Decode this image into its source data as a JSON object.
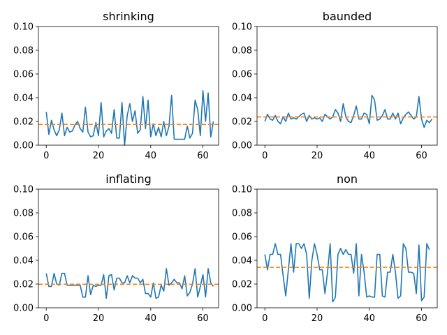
{
  "colors": {
    "series": "#1f77b4",
    "reference": "#ff7f0e"
  },
  "chart_data": [
    {
      "type": "line",
      "title": "shrinking",
      "xlim": [
        -3,
        66
      ],
      "ylim": [
        0,
        0.1
      ],
      "xticks": [
        "0",
        "20",
        "40",
        "60"
      ],
      "yticks": [
        "0.00",
        "0.02",
        "0.04",
        "0.06",
        "0.08",
        "0.10"
      ],
      "reference_line": 0.0175,
      "series": [
        {
          "values": [
            0.028,
            0.009,
            0.021,
            0.013,
            0.008,
            0.013,
            0.027,
            0.008,
            0.015,
            0.011,
            0.012,
            0.017,
            0.02,
            0.014,
            0.011,
            0.032,
            0.011,
            0.007,
            0.008,
            0.019,
            0.008,
            0.036,
            0.007,
            0.012,
            0.014,
            0.01,
            0.03,
            0.006,
            0.006,
            0.036,
            0.0,
            0.025,
            0.035,
            0.02,
            0.029,
            0.01,
            0.013,
            0.041,
            0.014,
            0.038,
            0.007,
            0.018,
            0.008,
            0.015,
            0.007,
            0.02,
            0.008,
            0.016,
            0.042,
            0.005,
            0.005,
            0.005,
            0.005,
            0.005,
            0.016,
            0.006,
            0.01,
            0.038,
            0.03,
            0.008,
            0.046,
            0.02,
            0.044,
            0.007,
            0.02
          ]
        }
      ]
    },
    {
      "type": "line",
      "title": "baunded",
      "xlim": [
        -3,
        66
      ],
      "ylim": [
        0,
        0.1
      ],
      "xticks": [
        "0",
        "20",
        "40",
        "60"
      ],
      "yticks": [
        "0.00",
        "0.02",
        "0.04",
        "0.06",
        "0.08",
        "0.10"
      ],
      "reference_line": 0.0238,
      "series": [
        {
          "values": [
            0.02,
            0.026,
            0.022,
            0.021,
            0.025,
            0.02,
            0.018,
            0.024,
            0.02,
            0.027,
            0.022,
            0.023,
            0.022,
            0.024,
            0.026,
            0.027,
            0.02,
            0.025,
            0.022,
            0.023,
            0.022,
            0.023,
            0.02,
            0.026,
            0.024,
            0.022,
            0.024,
            0.03,
            0.027,
            0.02,
            0.035,
            0.024,
            0.02,
            0.019,
            0.025,
            0.033,
            0.022,
            0.022,
            0.027,
            0.026,
            0.018,
            0.042,
            0.038,
            0.021,
            0.022,
            0.025,
            0.03,
            0.022,
            0.022,
            0.027,
            0.022,
            0.027,
            0.018,
            0.023,
            0.026,
            0.028,
            0.025,
            0.022,
            0.024,
            0.041,
            0.022,
            0.015,
            0.021,
            0.019,
            0.022
          ]
        }
      ]
    },
    {
      "type": "line",
      "title": "inflating",
      "xlim": [
        -3,
        66
      ],
      "ylim": [
        0,
        0.1
      ],
      "xticks": [
        "0",
        "20",
        "40",
        "60"
      ],
      "yticks": [
        "0.00",
        "0.02",
        "0.04",
        "0.06",
        "0.08",
        "0.10"
      ],
      "reference_line": 0.0198,
      "series": [
        {
          "values": [
            0.029,
            0.018,
            0.018,
            0.029,
            0.02,
            0.019,
            0.029,
            0.029,
            0.019,
            0.019,
            0.019,
            0.019,
            0.019,
            0.019,
            0.009,
            0.009,
            0.027,
            0.011,
            0.019,
            0.018,
            0.019,
            0.019,
            0.028,
            0.008,
            0.027,
            0.028,
            0.015,
            0.025,
            0.025,
            0.021,
            0.021,
            0.027,
            0.021,
            0.027,
            0.025,
            0.025,
            0.021,
            0.024,
            0.012,
            0.012,
            0.009,
            0.021,
            0.008,
            0.009,
            0.019,
            0.014,
            0.033,
            0.019,
            0.021,
            0.024,
            0.021,
            0.021,
            0.016,
            0.027,
            0.01,
            0.013,
            0.02,
            0.033,
            0.009,
            0.018,
            0.028,
            0.009,
            0.033,
            0.021,
            0.018
          ]
        }
      ]
    },
    {
      "type": "line",
      "title": "non",
      "xlim": [
        -3,
        66
      ],
      "ylim": [
        0,
        0.1
      ],
      "xticks": [
        "0",
        "20",
        "40",
        "60"
      ],
      "yticks": [
        "0.00",
        "0.02",
        "0.04",
        "0.06",
        "0.08",
        "0.10"
      ],
      "reference_line": 0.0341,
      "series": [
        {
          "values": [
            0.045,
            0.032,
            0.045,
            0.045,
            0.054,
            0.045,
            0.045,
            0.027,
            0.01,
            0.032,
            0.054,
            0.03,
            0.054,
            0.054,
            0.05,
            0.054,
            0.045,
            0.008,
            0.04,
            0.054,
            0.045,
            0.032,
            0.032,
            0.012,
            0.03,
            0.054,
            0.005,
            0.009,
            0.045,
            0.05,
            0.045,
            0.049,
            0.045,
            0.045,
            0.029,
            0.054,
            0.01,
            0.045,
            0.03,
            0.009,
            0.01,
            0.009,
            0.009,
            0.045,
            0.045,
            0.01,
            0.009,
            0.03,
            0.03,
            0.045,
            0.03,
            0.008,
            0.01,
            0.054,
            0.05,
            0.03,
            0.03,
            0.029,
            0.012,
            0.053,
            0.006,
            0.009,
            0.054,
            0.049
          ]
        }
      ]
    }
  ]
}
